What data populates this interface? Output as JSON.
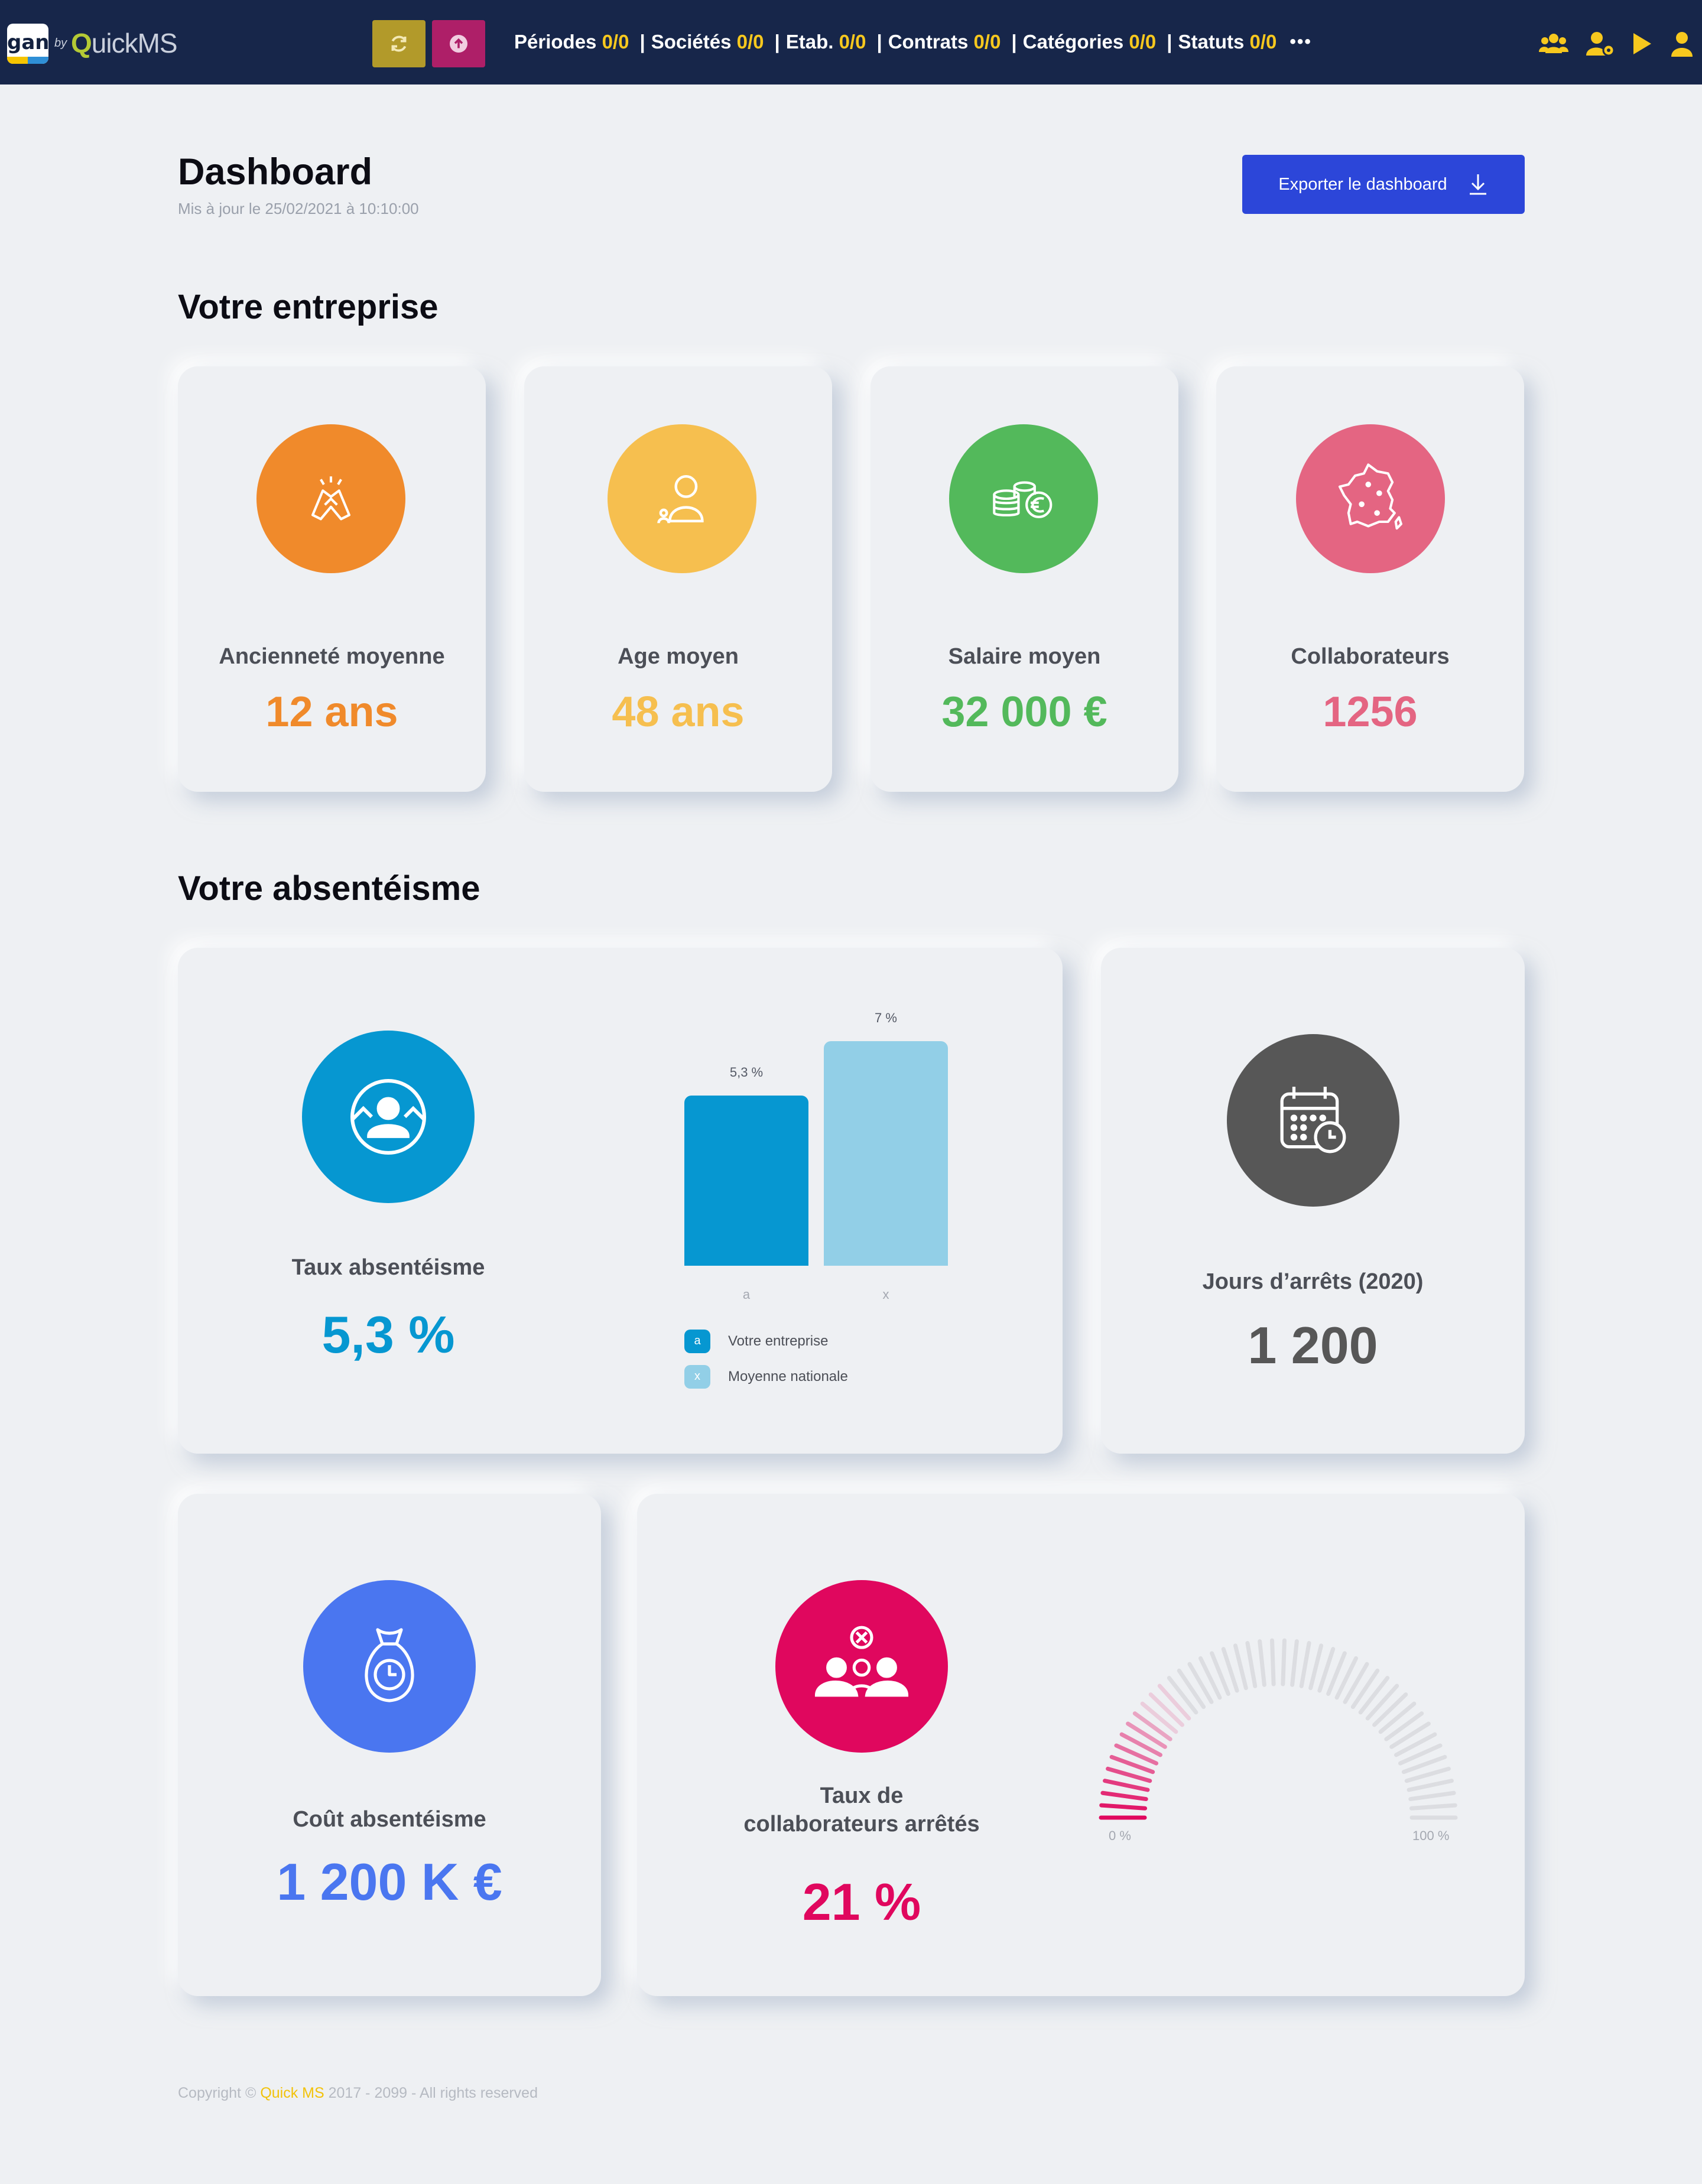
{
  "navbar": {
    "logo_text": "gan",
    "logo_by": "by",
    "logo_brand": "QuickMS",
    "logo_brand_q": "Q",
    "logo_brand_rest": "uickMS",
    "filters": [
      {
        "label": "Périodes",
        "value": "0/0"
      },
      {
        "label": "Sociétés",
        "value": "0/0"
      },
      {
        "label": "Etab.",
        "value": "0/0"
      },
      {
        "label": "Contrats",
        "value": "0/0"
      },
      {
        "label": "Catégories",
        "value": "0/0"
      },
      {
        "label": "Statuts",
        "value": "0/0"
      }
    ],
    "separator": "|",
    "more_label": "•••",
    "icons": [
      "users-icon",
      "user-settings-icon",
      "play-icon",
      "user-icon"
    ],
    "colors": {
      "bg": "#17264a",
      "accent": "#f7c81e",
      "refresh": "#b29a2a",
      "upload": "#ae1f68"
    }
  },
  "header": {
    "title": "Dashboard",
    "updated": "Mis à jour le 25/02/2021 à 10:10:00",
    "export_label": "Exporter le dashboard"
  },
  "sections": {
    "company": "Votre entreprise",
    "absence": "Votre absentéisme"
  },
  "company_cards": [
    {
      "label": "Ancienneté moyenne",
      "value": "12 ans",
      "color": "#f08a2b",
      "icon": "handshake-icon"
    },
    {
      "label": "Age moyen",
      "value": "48 ans",
      "color": "#f6bf4f",
      "icon": "person-icon"
    },
    {
      "label": "Salaire moyen",
      "value": "32 000 €",
      "color": "#53b95b",
      "icon": "coins-euro-icon"
    },
    {
      "label": "Collaborateurs",
      "value": "1256",
      "color": "#e46582",
      "icon": "france-map-icon"
    }
  ],
  "absence_rate": {
    "label": "Taux absentéisme",
    "value": "5,3 %",
    "color": "#0697d1",
    "icon": "absence-person-icon"
  },
  "chart_data": {
    "type": "bar",
    "categories": [
      "a",
      "x"
    ],
    "values": [
      5.3,
      7
    ],
    "data_labels": [
      "5,3 %",
      "7 %"
    ],
    "colors": [
      "#0697d1",
      "#92cfe7"
    ],
    "legend": [
      {
        "key": "a",
        "label": "Votre entreprise"
      },
      {
        "key": "x",
        "label": "Moyenne nationale"
      }
    ],
    "ylim": [
      0,
      7
    ],
    "grid": false,
    "legend_position": "bottom-left"
  },
  "days_off": {
    "label": "Jours d’arrêts (2020)",
    "value": "1 200",
    "color": "#575757",
    "icon": "calendar-clock-icon"
  },
  "absence_cost": {
    "label": "Coût absentéisme",
    "value": "1 200 K €",
    "color": "#4a76f0",
    "icon": "money-bag-clock-icon"
  },
  "stopped_rate": {
    "label_line1": "Taux de",
    "label_line2": "collaborateurs arrêtés",
    "value": "21 %",
    "color": "#e0075e",
    "icon": "team-stopped-icon",
    "gauge": {
      "value": 21,
      "min_label": "0 %",
      "max_label": "100 %"
    }
  },
  "footer": {
    "prefix": "Copyright © ",
    "brand": "Quick MS",
    "suffix": " 2017 - 2099 - All rights reserved"
  }
}
